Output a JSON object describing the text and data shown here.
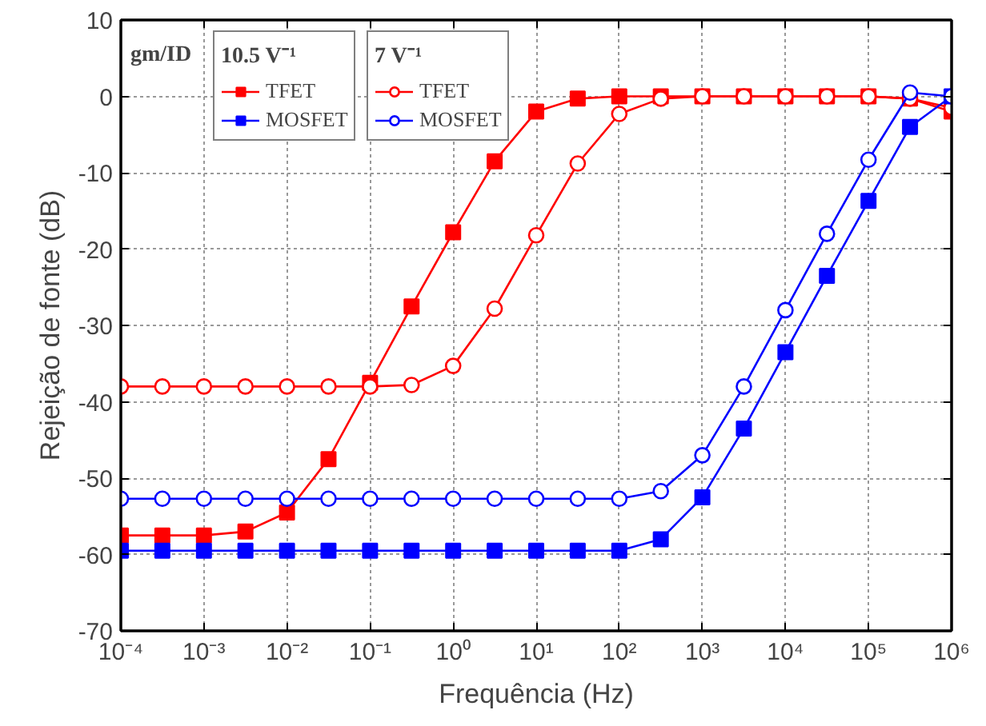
{
  "chart_data": {
    "type": "line",
    "xlabel": "Frequência (Hz)",
    "ylabel": "Rejeição de fonte (dB)",
    "legend_title": "gm/ID",
    "annotations": [
      "10.5 V⁻¹",
      "7 V⁻¹"
    ],
    "x": [
      0.0001,
      0.000316,
      0.001,
      0.00316,
      0.01,
      0.0316,
      0.1,
      0.316,
      1,
      3.16,
      10,
      31.6,
      100,
      316,
      1000,
      3160,
      10000,
      31600,
      100000,
      316000,
      1000000
    ],
    "series": [
      {
        "name": "TFET",
        "color": "#ff0000",
        "marker": "square",
        "values": [
          -57.5,
          -57.5,
          -57.5,
          -57,
          -54.5,
          -47.5,
          -37.5,
          -27.5,
          -17.8,
          -8.5,
          -2,
          -0.3,
          0,
          0,
          0,
          0,
          0,
          0,
          0,
          -0.3,
          -2
        ]
      },
      {
        "name": "TFET",
        "color": "#ff0000",
        "marker": "circle",
        "values": [
          -38,
          -38,
          -38,
          -38,
          -38,
          -38,
          -38,
          -37.8,
          -35.3,
          -27.8,
          -18.2,
          -8.8,
          -2.3,
          -0.3,
          0,
          0,
          0,
          0,
          0,
          -0.3,
          -1.5
        ]
      },
      {
        "name": "MOSFET",
        "color": "#0000ff",
        "marker": "square",
        "values": [
          -59.5,
          -59.5,
          -59.5,
          -59.5,
          -59.5,
          -59.5,
          -59.5,
          -59.5,
          -59.5,
          -59.5,
          -59.5,
          -59.5,
          -59.5,
          -58,
          -52.5,
          -43.5,
          -33.5,
          -23.5,
          -13.7,
          -4,
          0
        ]
      },
      {
        "name": "MOSFET",
        "color": "#0000ff",
        "marker": "circle",
        "values": [
          -52.7,
          -52.7,
          -52.7,
          -52.7,
          -52.7,
          -52.7,
          -52.7,
          -52.7,
          -52.7,
          -52.7,
          -52.7,
          -52.7,
          -52.7,
          -51.7,
          -47,
          -38,
          -28,
          -18,
          -8.3,
          0.5,
          0
        ]
      }
    ],
    "log": "x",
    "xlim": [
      0.0001,
      1000000
    ],
    "xticks": [
      {
        "value": 0.0001,
        "label": "10⁻⁴"
      },
      {
        "value": 0.001,
        "label": "10⁻³"
      },
      {
        "value": 0.01,
        "label": "10⁻²"
      },
      {
        "value": 0.1,
        "label": "10⁻¹"
      },
      {
        "value": 1,
        "label": "10⁰"
      },
      {
        "value": 10,
        "label": "10¹"
      },
      {
        "value": 100,
        "label": "10²"
      },
      {
        "value": 1000,
        "label": "10³"
      },
      {
        "value": 10000,
        "label": "10⁴"
      },
      {
        "value": 100000,
        "label": "10⁵"
      },
      {
        "value": 1000000,
        "label": "10⁶"
      }
    ],
    "ylim": [
      -70,
      10
    ],
    "yticks": [
      -70,
      -60,
      -50,
      -40,
      -30,
      -20,
      -10,
      0,
      10
    ],
    "grid": true,
    "legend": "top left",
    "line_style": "solid"
  }
}
